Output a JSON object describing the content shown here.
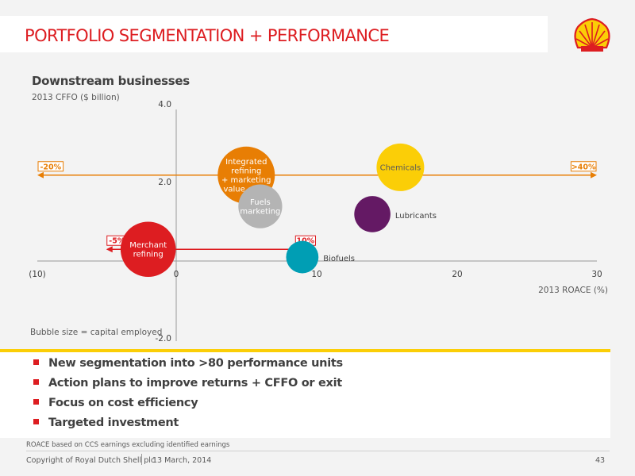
{
  "header": {
    "title": "PORTFOLIO SEGMENTATION + PERFORMANCE",
    "logo": "shell-pecten-logo"
  },
  "chart_data": {
    "type": "scatter",
    "title": "Downstream businesses",
    "xlabel": "2013 ROACE (%)",
    "ylabel": "2013 CFFO ($ billion)",
    "xlim": [
      -10,
      30
    ],
    "ylim": [
      -2,
      4
    ],
    "x_tick_labels": [
      "(10)",
      "0",
      "10",
      "20",
      "30"
    ],
    "y_tick_labels": [
      "4.0",
      "2.0",
      "-2.0"
    ],
    "grid": false,
    "size_note": "Bubble size = capital employed",
    "points": [
      {
        "name": "Integrated refining + marketing value chain",
        "label_lines": [
          "Integrated",
          "refining",
          "+ marketing",
          "value chain"
        ],
        "x": 5,
        "y": 2.2,
        "size": 1.0,
        "color": "#e87e04",
        "label_color": "#ffffff",
        "label_pos": "center"
      },
      {
        "name": "Fuels marketing",
        "label_lines": [
          "Fuels",
          "marketing"
        ],
        "x": 6,
        "y": 1.4,
        "size": 0.65,
        "color": "#b4b4b4",
        "label_color": "#ffffff",
        "label_pos": "center"
      },
      {
        "name": "Chemicals",
        "label_lines": [
          "Chemicals"
        ],
        "x": 16,
        "y": 2.4,
        "size": 0.75,
        "color": "#fbce07",
        "label_color": "#595959",
        "label_pos": "center"
      },
      {
        "name": "Lubricants",
        "label_lines": [
          "Lubricants"
        ],
        "x": 14,
        "y": 1.2,
        "size": 0.45,
        "color": "#641964",
        "label_color": "#404040",
        "label_pos": "right"
      },
      {
        "name": "Merchant refining",
        "label_lines": [
          "Merchant",
          "refining"
        ],
        "x": -2,
        "y": 0.3,
        "size": 0.95,
        "color": "#dd1d21",
        "label_color": "#ffffff",
        "label_pos": "center"
      },
      {
        "name": "Biofuels",
        "label_lines": [
          "Biofuels"
        ],
        "x": 9,
        "y": 0.1,
        "size": 0.35,
        "color": "#009eb4",
        "label_color": "#404040",
        "label_pos": "right"
      }
    ],
    "ranges": [
      {
        "y": 2.2,
        "x_from": -20,
        "x_to": 40,
        "left_label": "-20%",
        "right_label": ">40%",
        "color": "#e87e04"
      },
      {
        "y": 0.3,
        "x_from": -5,
        "x_to": 10,
        "left_label": "-5%",
        "right_label": "10%",
        "color": "#dd1d21"
      }
    ]
  },
  "bullets": [
    "New segmentation into >80 performance units",
    "Action plans to improve returns + CFFO or exit",
    "Focus on cost efficiency",
    "Targeted investment"
  ],
  "footer": {
    "footnote": "ROACE based on CCS earnings excluding identified earnings",
    "copyright": "Copyright of Royal Dutch Shell plc",
    "date": "13 March, 2014",
    "page": "43"
  },
  "colors": {
    "accent_red": "#dd1d21",
    "accent_yellow": "#fbce07"
  }
}
